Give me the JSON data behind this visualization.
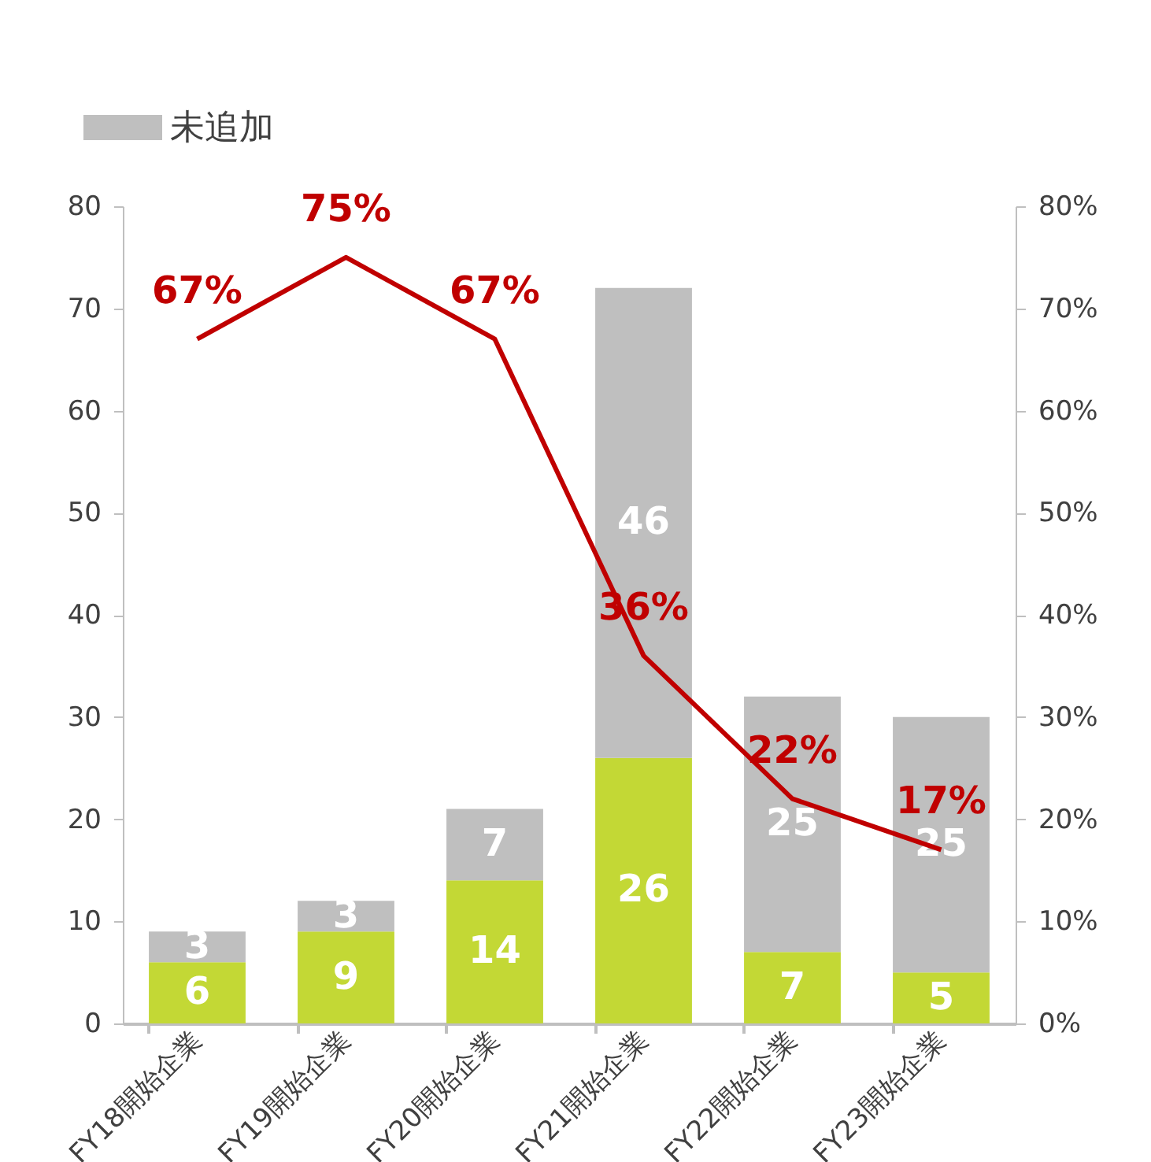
{
  "chart_data": {
    "type": "bar",
    "stacked": true,
    "legend": "top left",
    "grid": false,
    "categories": [
      "FY18開始企業",
      "FY19開始企業",
      "FY20開始企業",
      "FY21開始企業",
      "FY22開始企業",
      "FY23開始企業"
    ],
    "series": [
      {
        "color": "#c3d835",
        "values": [
          6,
          9,
          14,
          26,
          7,
          5
        ]
      },
      {
        "name": "未追加",
        "color": "#bfbfbf",
        "values": [
          3,
          3,
          7,
          46,
          25,
          25
        ]
      },
      {
        "type": "line",
        "axis": "y2",
        "color": "#c00000",
        "values": [
          67,
          75,
          67,
          36,
          22,
          17
        ],
        "value_labels": [
          "67%",
          "75%",
          "67%",
          "36%",
          "22%",
          "17%"
        ]
      }
    ],
    "data_labels": true,
    "ylim": [
      0,
      80
    ],
    "yticks": [
      0,
      10,
      20,
      30,
      40,
      50,
      60,
      70,
      80
    ],
    "y2lim": [
      0,
      80
    ],
    "y2ticks": [
      {
        "value": 0,
        "label": "0%"
      },
      {
        "value": 10,
        "label": "10%"
      },
      {
        "value": 20,
        "label": "20%"
      },
      {
        "value": 30,
        "label": "30%"
      },
      {
        "value": 40,
        "label": "40%"
      },
      {
        "value": 50,
        "label": "50%"
      },
      {
        "value": 60,
        "label": "60%"
      },
      {
        "value": 70,
        "label": "70%"
      },
      {
        "value": 80,
        "label": "80%"
      }
    ]
  }
}
